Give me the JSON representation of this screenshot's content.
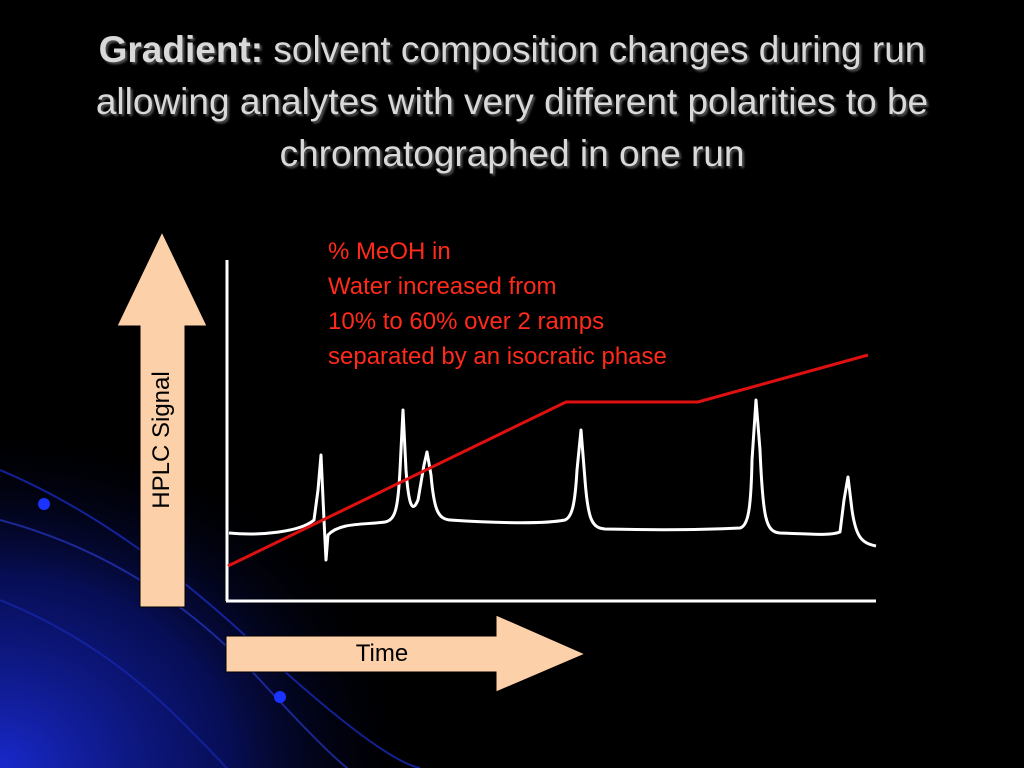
{
  "slide": {
    "title_bold": "Gradient:",
    "title_rest": "solvent composition changes during run allowing analytes with very different polarities to be chromatographed in one run"
  },
  "annotation": {
    "lines": [
      "% MeOH in",
      "Water increased from",
      "10% to 60% over 2 ramps",
      "separated by an isocratic phase"
    ],
    "color": "#ff2a1a"
  },
  "axes": {
    "y_label": "HPLC Signal",
    "x_label": "Time",
    "arrow_fill": "#fcd0a8"
  },
  "colors": {
    "background": "#000000",
    "trace": "#ffffff",
    "gradient_line": "#e01010",
    "title": "#d9d9d9"
  }
}
